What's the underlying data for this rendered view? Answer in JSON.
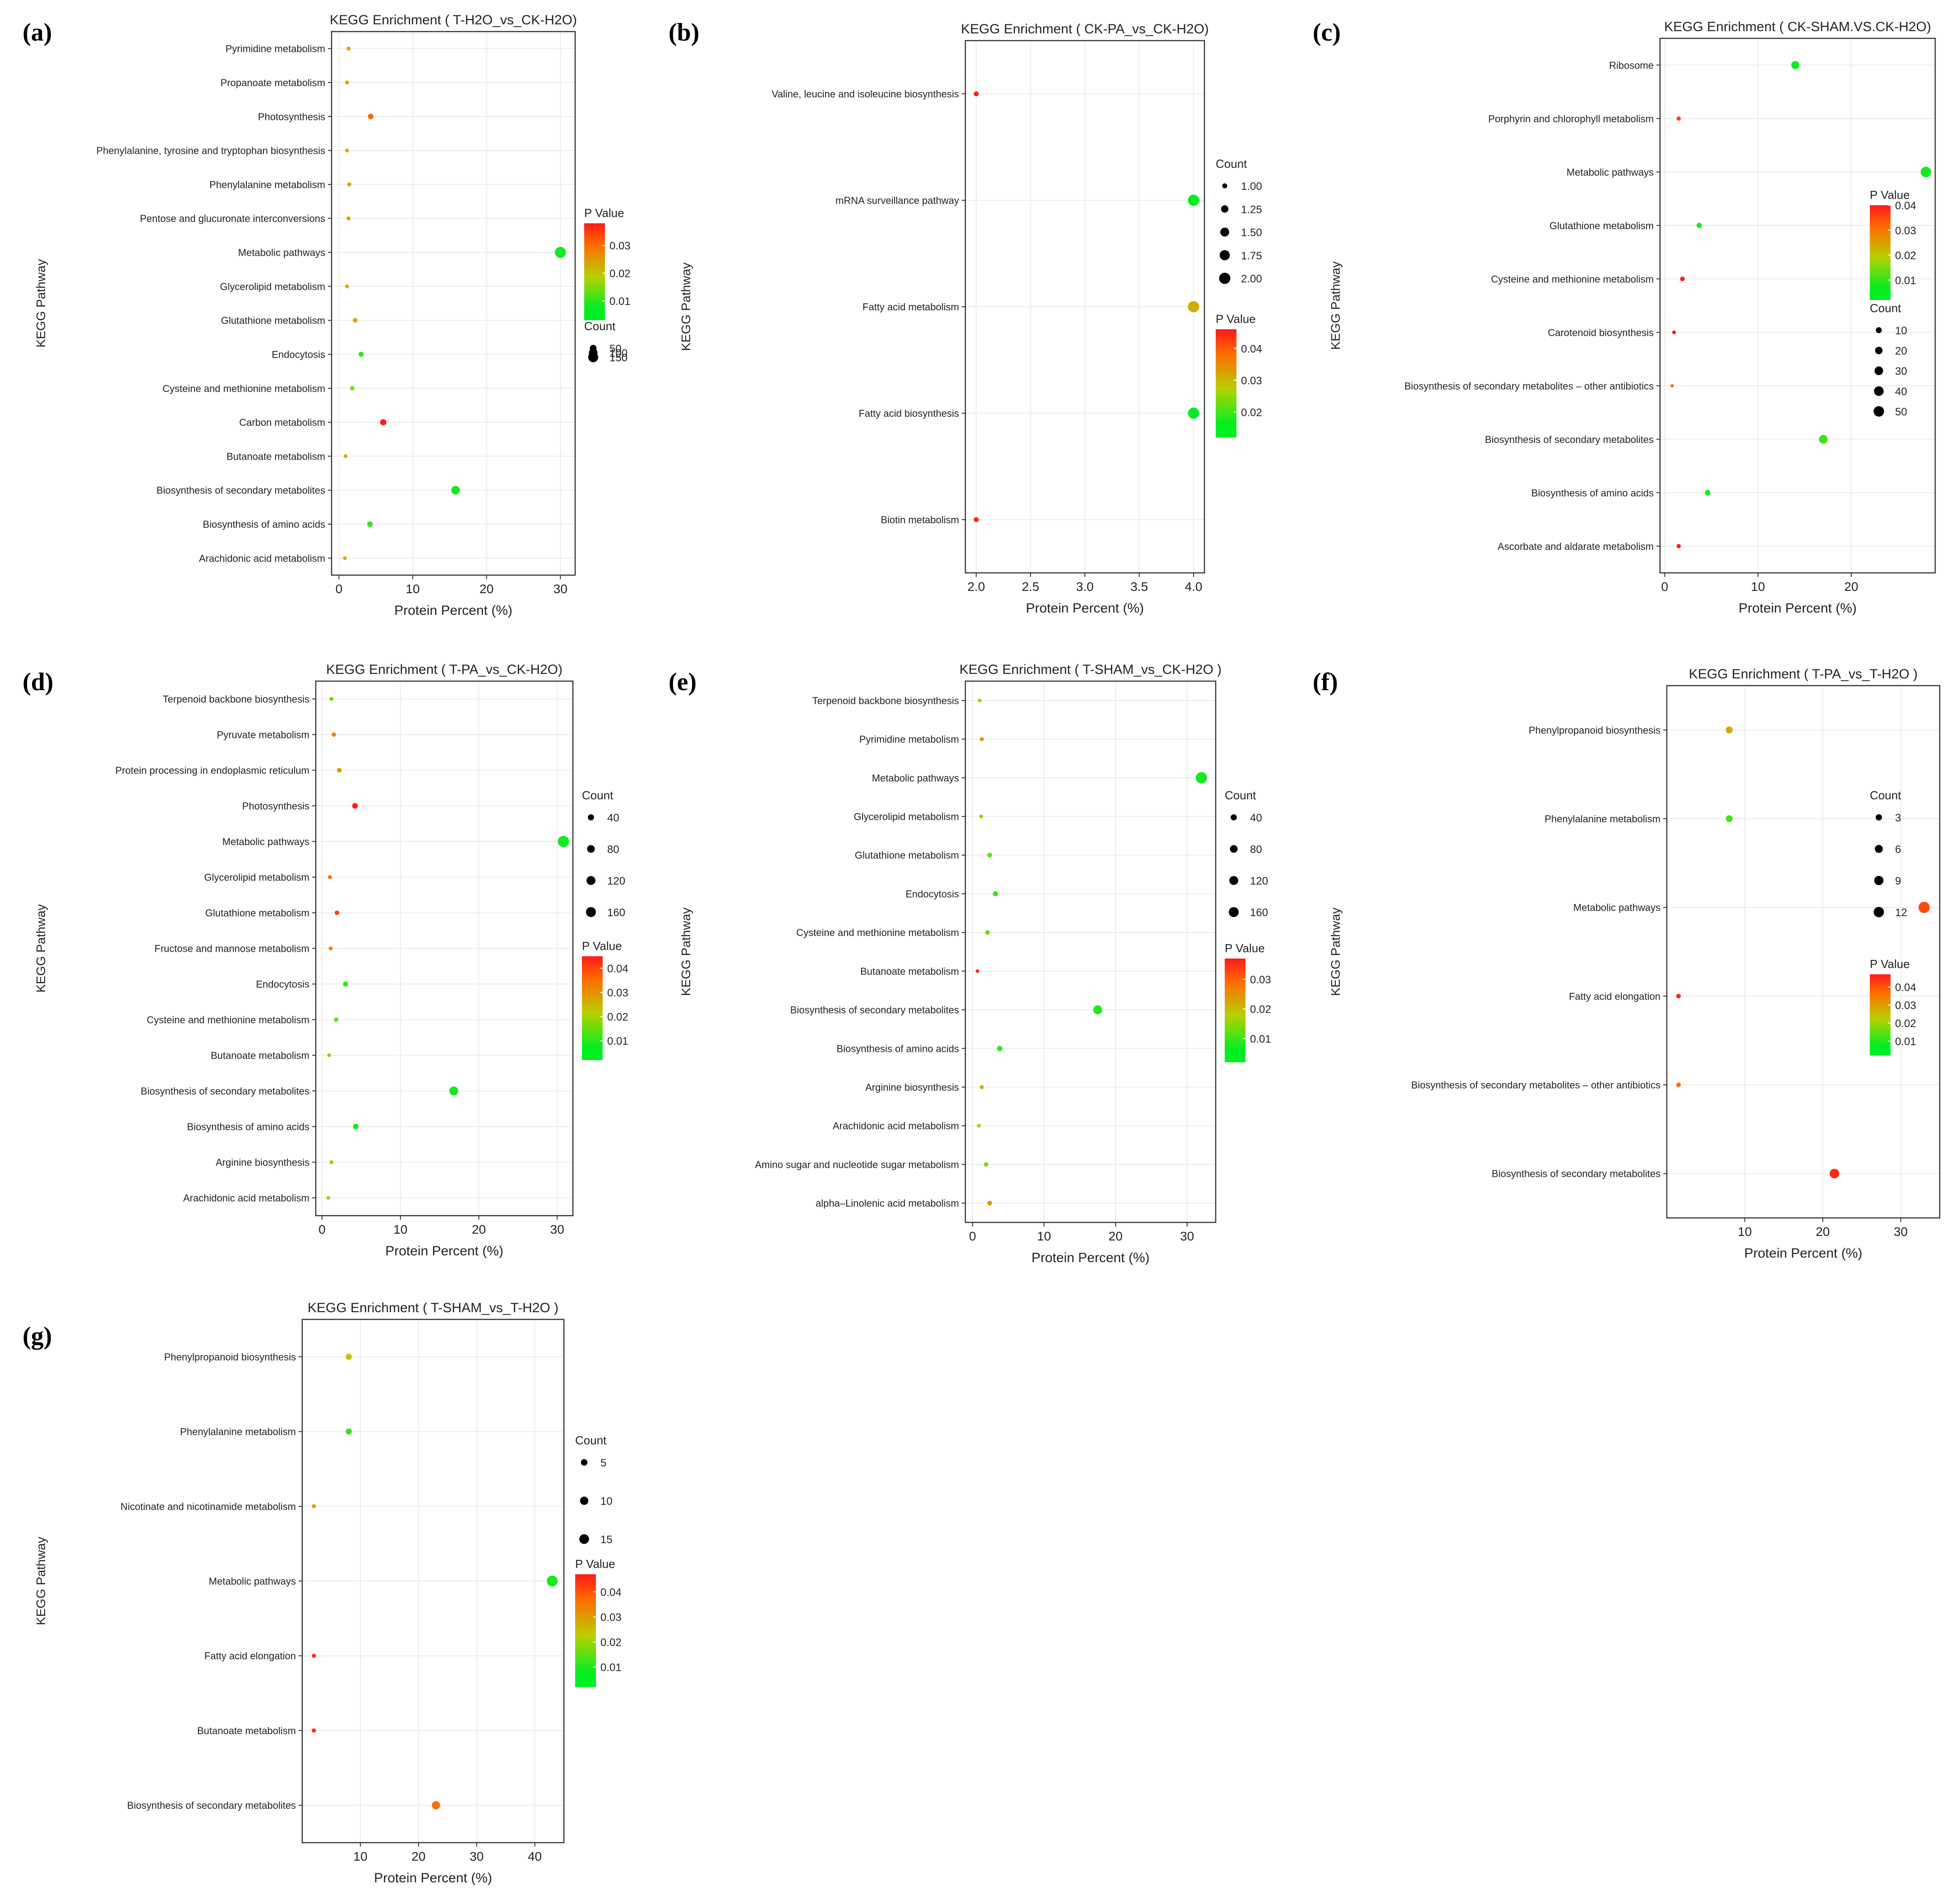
{
  "figure": {
    "panel_letters": [
      "(a)",
      "(b)",
      "(c)",
      "(d)",
      "(e)",
      "(f)",
      "(g)"
    ],
    "legend_count_title": "Count",
    "legend_pvalue_title": "P Value",
    "colors": {
      "low_p": "#00ee22",
      "mid_p": "#b8d000",
      "high_p": "#ff6a00",
      "top_p": "#ff1a1a",
      "grid": "#ececec",
      "frame": "#333333"
    }
  },
  "chart_data": [
    {
      "id": "a",
      "type": "scatter",
      "title": "KEGG Enrichment ( T-H2O_vs_CK-H2O)",
      "xlabel": "Protein Percent (%)",
      "ylabel": "KEGG Pathway",
      "xlim": [
        -1,
        32
      ],
      "xticks": [
        0,
        10,
        20,
        30
      ],
      "xtick_labels": [
        "0",
        "10",
        "20",
        "30"
      ],
      "categories": [
        "Pyrimidine metabolism",
        "Propanoate metabolism",
        "Photosynthesis",
        "Phenylalanine, tyrosine and tryptophan biosynthesis",
        "Phenylalanine metabolism",
        "Pentose and glucuronate interconversions",
        "Metabolic pathways",
        "Glycerolipid metabolism",
        "Glutathione metabolism",
        "Endocytosis",
        "Cysteine and methionine metabolism",
        "Carbon metabolism",
        "Butanoate metabolism",
        "Biosynthesis of secondary metabolites",
        "Biosynthesis of amino acids",
        "Arachidonic acid metabolism"
      ],
      "x": [
        1.3,
        1.1,
        4.3,
        1.1,
        1.4,
        1.3,
        30,
        1.1,
        2.2,
        3.0,
        1.8,
        6.0,
        0.9,
        15.8,
        4.2,
        0.8
      ],
      "count": [
        8,
        7,
        27,
        7,
        9,
        8,
        189,
        7,
        14,
        19,
        11,
        38,
        6,
        100,
        26,
        5
      ],
      "pvalue": [
        0.02,
        0.02,
        0.03,
        0.02,
        0.02,
        0.02,
        0.004,
        0.02,
        0.02,
        0.006,
        0.01,
        0.038,
        0.02,
        0.004,
        0.006,
        0.02
      ],
      "plim": [
        0.003,
        0.038
      ],
      "color_ticks": [
        0.03,
        0.02,
        0.01
      ],
      "color_tick_labels": [
        "0.03",
        "0.02",
        "0.01"
      ],
      "size_ticks": [
        50,
        100,
        150
      ],
      "size_tick_labels": [
        "50",
        "100",
        "150"
      ],
      "size_range": [
        0,
        200
      ]
    },
    {
      "id": "b",
      "type": "scatter",
      "title": "KEGG Enrichment ( CK-PA_vs_CK-H2O)",
      "xlabel": "Protein Percent (%)",
      "ylabel": "KEGG Pathway",
      "xlim": [
        1.9,
        4.1
      ],
      "xticks": [
        2.0,
        2.5,
        3.0,
        3.5,
        4.0
      ],
      "xtick_labels": [
        "2.0",
        "2.5",
        "3.0",
        "3.5",
        "4.0"
      ],
      "categories": [
        "Valine, leucine and isoleucine biosynthesis",
        "mRNA surveillance pathway",
        "Fatty acid metabolism",
        "Fatty acid biosynthesis",
        "Biotin metabolism"
      ],
      "x": [
        2.0,
        4.0,
        4.0,
        4.0,
        2.0
      ],
      "count": [
        1,
        2,
        2,
        2,
        1
      ],
      "pvalue": [
        0.045,
        0.012,
        0.028,
        0.012,
        0.045
      ],
      "plim": [
        0.012,
        0.046
      ],
      "color_ticks": [
        0.04,
        0.03,
        0.02
      ],
      "color_tick_labels": [
        "0.04",
        "0.03",
        "0.02"
      ],
      "size_ticks": [
        1.0,
        1.25,
        1.5,
        1.75,
        2.0
      ],
      "size_tick_labels": [
        "1.00",
        "1.25",
        "1.50",
        "1.75",
        "2.00"
      ],
      "size_range": [
        0.9,
        2.0
      ]
    },
    {
      "id": "c",
      "type": "scatter",
      "title": "KEGG Enrichment ( CK-SHAM.VS.CK-H2O)",
      "xlabel": "Protein Percent (%)",
      "ylabel": "KEGG Pathway",
      "xlim": [
        -0.5,
        29
      ],
      "xticks": [
        0,
        10,
        20
      ],
      "xtick_labels": [
        "0",
        "10",
        "20"
      ],
      "categories": [
        "Ribosome",
        "Porphyrin and chlorophyll metabolism",
        "Metabolic pathways",
        "Glutathione metabolism",
        "Cysteine and methionine metabolism",
        "Carotenoid biosynthesis",
        "Biosynthesis of secondary metabolites – other antibiotics",
        "Biosynthesis of secondary metabolites",
        "Biosynthesis of amino acids",
        "Ascorbate and aldarate metabolism"
      ],
      "x": [
        14,
        1.5,
        28,
        3.7,
        1.9,
        1.0,
        0.8,
        17,
        4.6,
        1.5
      ],
      "count": [
        25,
        3,
        50,
        7,
        4,
        2,
        1,
        30,
        8,
        3
      ],
      "pvalue": [
        0.003,
        0.035,
        0.003,
        0.004,
        0.04,
        0.04,
        0.03,
        0.006,
        0.004,
        0.04
      ],
      "plim": [
        0.002,
        0.04
      ],
      "color_ticks": [
        0.04,
        0.03,
        0.02,
        0.01
      ],
      "color_tick_labels": [
        "0.04",
        "0.03",
        "0.02",
        "0.01"
      ],
      "size_ticks": [
        10,
        20,
        30,
        40,
        50
      ],
      "size_tick_labels": [
        "10",
        "20",
        "30",
        "40",
        "50"
      ],
      "size_range": [
        0,
        60
      ]
    },
    {
      "id": "d",
      "type": "scatter",
      "title": "KEGG Enrichment ( T-PA_vs_CK-H2O)",
      "xlabel": "Protein Percent (%)",
      "ylabel": "KEGG Pathway",
      "xlim": [
        -0.8,
        32
      ],
      "xticks": [
        0,
        10,
        20,
        30
      ],
      "xtick_labels": [
        "0",
        "10",
        "20",
        "30"
      ],
      "categories": [
        "Terpenoid backbone biosynthesis",
        "Pyruvate metabolism",
        "Protein processing in endoplasmic reticulum",
        "Photosynthesis",
        "Metabolic pathways",
        "Glycerolipid metabolism",
        "Glutathione metabolism",
        "Fructose and mannose metabolism",
        "Endocytosis",
        "Cysteine and methionine metabolism",
        "Butanoate metabolism",
        "Biosynthesis of secondary metabolites",
        "Biosynthesis of amino acids",
        "Arginine biosynthesis",
        "Arachidonic acid metabolism"
      ],
      "x": [
        1.2,
        1.5,
        2.2,
        4.2,
        30.8,
        1.0,
        1.9,
        1.1,
        3.0,
        1.8,
        0.9,
        16.8,
        4.3,
        1.2,
        0.8
      ],
      "count": [
        9,
        11,
        16,
        30,
        220,
        7,
        14,
        8,
        22,
        13,
        6,
        120,
        30,
        8,
        5
      ],
      "pvalue": [
        0.01,
        0.03,
        0.025,
        0.045,
        0.003,
        0.035,
        0.04,
        0.03,
        0.006,
        0.01,
        0.02,
        0.003,
        0.004,
        0.02,
        0.02
      ],
      "plim": [
        0.002,
        0.045
      ],
      "color_ticks": [
        0.04,
        0.03,
        0.02,
        0.01
      ],
      "color_tick_labels": [
        "0.04",
        "0.03",
        "0.02",
        "0.01"
      ],
      "size_ticks": [
        40,
        80,
        120,
        160
      ],
      "size_tick_labels": [
        "40",
        "80",
        "120",
        "160"
      ],
      "size_range": [
        0,
        220
      ]
    },
    {
      "id": "e",
      "type": "scatter",
      "title": "KEGG Enrichment ( T-SHAM_vs_CK-H2O )",
      "xlabel": "Protein Percent (%)",
      "ylabel": "KEGG Pathway",
      "xlim": [
        -1,
        34
      ],
      "xticks": [
        0,
        10,
        20,
        30
      ],
      "xtick_labels": [
        "0",
        "10",
        "20",
        "30"
      ],
      "categories": [
        "Terpenoid backbone biosynthesis",
        "Pyrimidine metabolism",
        "Metabolic pathways",
        "Glycerolipid metabolism",
        "Glutathione metabolism",
        "Endocytosis",
        "Cysteine and methionine metabolism",
        "Butanoate metabolism",
        "Biosynthesis of secondary metabolites",
        "Biosynthesis of amino acids",
        "Arginine biosynthesis",
        "Arachidonic acid metabolism",
        "Amino sugar and nucleotide sugar metabolism",
        "alpha–Linolenic acid metabolism"
      ],
      "x": [
        1.0,
        1.3,
        32,
        1.2,
        2.4,
        3.2,
        2.1,
        0.7,
        17.5,
        3.8,
        1.3,
        0.9,
        1.9,
        2.4
      ],
      "count": [
        7,
        9,
        220,
        8,
        16,
        22,
        14,
        5,
        120,
        26,
        9,
        6,
        13,
        16
      ],
      "pvalue": [
        0.015,
        0.022,
        0.003,
        0.012,
        0.008,
        0.006,
        0.008,
        0.036,
        0.004,
        0.005,
        0.018,
        0.012,
        0.01,
        0.022
      ],
      "plim": [
        0.002,
        0.037
      ],
      "color_ticks": [
        0.03,
        0.02,
        0.01
      ],
      "color_tick_labels": [
        "0.03",
        "0.02",
        "0.01"
      ],
      "size_ticks": [
        40,
        80,
        120,
        160
      ],
      "size_tick_labels": [
        "40",
        "80",
        "120",
        "160"
      ],
      "size_range": [
        0,
        220
      ]
    },
    {
      "id": "f",
      "type": "scatter",
      "title": "KEGG Enrichment ( T-PA_vs_T-H2O )",
      "xlabel": "Protein Percent (%)",
      "ylabel": "KEGG Pathway",
      "xlim": [
        0,
        35
      ],
      "xticks": [
        10,
        20,
        30
      ],
      "xtick_labels": [
        "10",
        "20",
        "30"
      ],
      "categories": [
        "Phenylpropanoid biosynthesis",
        "Phenylalanine metabolism",
        "Metabolic pathways",
        "Fatty acid elongation",
        "Biosynthesis of secondary metabolites – other antibiotics",
        "Biosynthesis of secondary metabolites"
      ],
      "x": [
        8,
        8,
        33,
        1.5,
        1.5,
        21.5
      ],
      "count": [
        4,
        4,
        15,
        1,
        1,
        10
      ],
      "pvalue": [
        0.025,
        0.008,
        0.04,
        0.045,
        0.035,
        0.045
      ],
      "plim": [
        0.002,
        0.047
      ],
      "color_ticks": [
        0.04,
        0.03,
        0.02,
        0.01
      ],
      "color_tick_labels": [
        "0.04",
        "0.03",
        "0.02",
        "0.01"
      ],
      "size_ticks": [
        3,
        6,
        9,
        12
      ],
      "size_tick_labels": [
        "3",
        "6",
        "9",
        "12"
      ],
      "size_range": [
        0,
        15
      ]
    },
    {
      "id": "g",
      "type": "scatter",
      "title": "KEGG Enrichment ( T-SHAM_vs_T-H2O )",
      "xlabel": "Protein Percent (%)",
      "ylabel": "KEGG Pathway",
      "xlim": [
        0,
        45
      ],
      "xticks": [
        10,
        20,
        30,
        40
      ],
      "xtick_labels": [
        "10",
        "20",
        "30",
        "40"
      ],
      "categories": [
        "Phenylpropanoid biosynthesis",
        "Phenylalanine metabolism",
        "Nicotinate and nicotinamide metabolism",
        "Metabolic pathways",
        "Fatty acid elongation",
        "Butanoate metabolism",
        "Biosynthesis of secondary metabolites"
      ],
      "x": [
        8,
        8,
        2,
        43,
        2,
        2,
        23
      ],
      "count": [
        4,
        4,
        1,
        20,
        1,
        1,
        10
      ],
      "pvalue": [
        0.02,
        0.006,
        0.025,
        0.004,
        0.045,
        0.045,
        0.035
      ],
      "plim": [
        0.002,
        0.047
      ],
      "color_ticks": [
        0.04,
        0.03,
        0.02,
        0.01
      ],
      "color_tick_labels": [
        "0.04",
        "0.03",
        "0.02",
        "0.01"
      ],
      "size_ticks": [
        5,
        10,
        15
      ],
      "size_tick_labels": [
        "5",
        "10",
        "15"
      ],
      "size_range": [
        0,
        22
      ]
    }
  ]
}
